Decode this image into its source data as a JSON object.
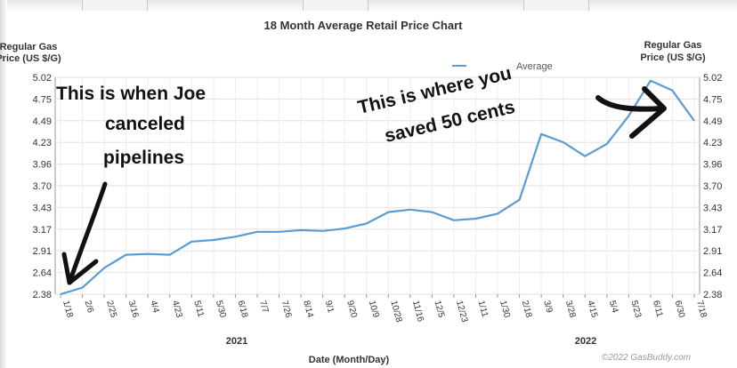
{
  "chart_data": {
    "type": "line",
    "title": "18 Month Average Retail Price Chart",
    "ylabel_left": [
      "Regular Gas",
      "Price (US $/G)"
    ],
    "ylabel_right": [
      "Regular Gas",
      "Price (US $/G)"
    ],
    "xlabel": "Date (Month/Day)",
    "legend": "Average",
    "legend_position": "top-right",
    "ylim": [
      2.38,
      5.02
    ],
    "yticks": [
      "5.02",
      "4.75",
      "4.49",
      "4.23",
      "3.96",
      "3.70",
      "3.43",
      "3.17",
      "2.91",
      "2.64",
      "2.38"
    ],
    "xticks": [
      "1/18",
      "2/6",
      "2/25",
      "3/16",
      "4/4",
      "4/23",
      "5/11",
      "5/30",
      "6/18",
      "7/7",
      "7/26",
      "8/14",
      "9/1",
      "9/20",
      "10/9",
      "10/28",
      "11/16",
      "12/5",
      "12/23",
      "1/11",
      "1/30",
      "2/18",
      "3/9",
      "3/28",
      "4/15",
      "5/4",
      "5/23",
      "6/11",
      "6/30",
      "7/18"
    ],
    "year_labels": [
      "2021",
      "2022"
    ],
    "credit": "©2022 GasBuddy.com",
    "grid": true,
    "line_color": "#5b9bd5",
    "series": [
      {
        "x": [
          "1/18",
          "2/6",
          "2/25",
          "3/16",
          "4/4",
          "4/23",
          "5/11",
          "5/30",
          "6/18",
          "7/7",
          "7/26",
          "8/14",
          "9/1",
          "9/20",
          "10/9",
          "10/28",
          "11/16",
          "12/5",
          "12/23",
          "1/11",
          "1/30",
          "2/18",
          "3/9",
          "3/28",
          "4/15",
          "5/4",
          "5/23",
          "6/11",
          "6/30",
          "7/18"
        ],
        "values": [
          2.38,
          2.46,
          2.7,
          2.86,
          2.87,
          2.86,
          3.02,
          3.04,
          3.08,
          3.14,
          3.14,
          3.16,
          3.15,
          3.18,
          3.24,
          3.38,
          3.41,
          3.38,
          3.28,
          3.3,
          3.36,
          3.53,
          4.33,
          4.23,
          4.06,
          4.21,
          4.55,
          4.98,
          4.86,
          4.49
        ]
      }
    ]
  },
  "annotations": {
    "left_lines": [
      "This is when Joe",
      "canceled",
      "pipelines"
    ],
    "right_lines": [
      "This is where you",
      "saved 50 cents"
    ]
  }
}
